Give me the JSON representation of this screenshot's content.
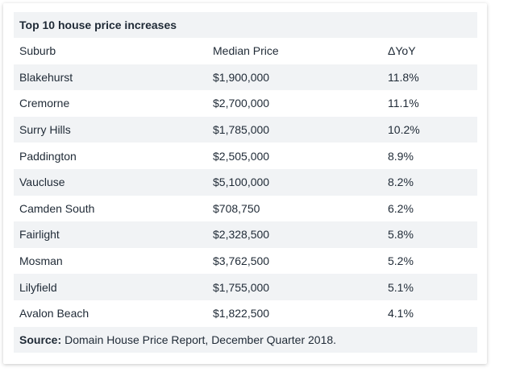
{
  "table": {
    "title": "Top 10 house price increases",
    "headers": [
      "Suburb",
      "Median Price",
      "ΔYoY"
    ],
    "rows": [
      [
        "Blakehurst",
        "$1,900,000",
        "11.8%"
      ],
      [
        "Cremorne",
        "$2,700,000",
        "11.1%"
      ],
      [
        "Surry Hills",
        "$1,785,000",
        "10.2%"
      ],
      [
        "Paddington",
        "$2,505,000",
        "8.9%"
      ],
      [
        "Vaucluse",
        "$5,100,000",
        "8.2%"
      ],
      [
        "Camden South",
        "$708,750",
        "6.2%"
      ],
      [
        "Fairlight",
        "$2,328,500",
        "5.8%"
      ],
      [
        "Mosman",
        "$3,762,500",
        "5.2%"
      ],
      [
        "Lilyfield",
        "$1,755,000",
        "5.1%"
      ],
      [
        "Avalon Beach",
        "$1,822,500",
        "4.1%"
      ]
    ],
    "source_label": "Source:",
    "source_text": "Domain House Price Report, December Quarter 2018."
  }
}
